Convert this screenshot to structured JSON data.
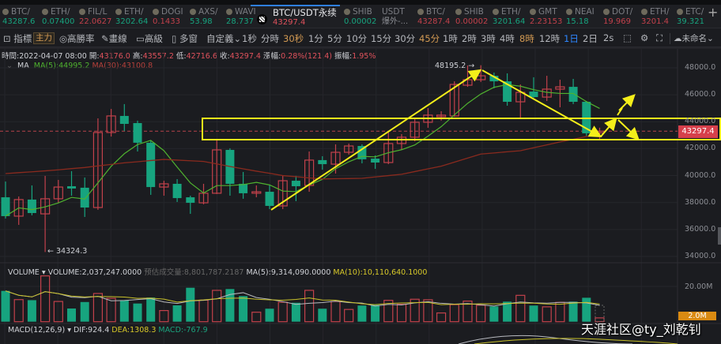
{
  "tabs": [
    {
      "name": "BTC/",
      "price": "43287.6",
      "dir": "up"
    },
    {
      "name": "ETH/",
      "price": "0.07400",
      "dir": "up"
    },
    {
      "name": "FIL/L",
      "price": "22.0627",
      "dir": "down"
    },
    {
      "name": "ETH/",
      "price": "3202.64",
      "dir": "up"
    },
    {
      "name": "DOGI",
      "price": "0.1433",
      "dir": "down"
    },
    {
      "name": "AXS/",
      "price": "53.98",
      "dir": "up"
    },
    {
      "name": "WAVI",
      "price": "28.737",
      "dir": "up"
    },
    {
      "name": "BTC/USDT永续",
      "price": "43297.4",
      "dir": "down",
      "active": true
    },
    {
      "name": "SHIB",
      "price": "0.00002",
      "dir": "up"
    },
    {
      "name": "USDT",
      "price": "爆外-...",
      "dir": "none"
    },
    {
      "name": "BTC/",
      "price": "43287.4",
      "dir": "down"
    },
    {
      "name": "SHIB",
      "price": "0.00002",
      "dir": "down"
    },
    {
      "name": "ETH/",
      "price": "3201.64",
      "dir": "up"
    },
    {
      "name": "GMT",
      "price": "2.23153",
      "dir": "down"
    },
    {
      "name": "NEAI",
      "price": "15.18",
      "dir": "up"
    },
    {
      "name": "DOT/",
      "price": "19.969",
      "dir": "down"
    },
    {
      "name": "ETH/",
      "price": "3201.4",
      "dir": "down"
    },
    {
      "name": "ETC/",
      "price": "39.321",
      "dir": "up"
    }
  ],
  "add_tab": "+",
  "toolbar": {
    "indicator": "指標",
    "main_badge": "主力",
    "win_rate": "高勝率",
    "draw": "畫線",
    "advanced": "高級",
    "multi_window": "多窗",
    "custom": "自定義",
    "intervals": [
      "1秒",
      "分時",
      "30秒",
      "1分",
      "5分",
      "10分",
      "15分",
      "30分",
      "45分",
      "1時",
      "2時",
      "3時",
      "4時",
      "8時",
      "12時",
      "1日",
      "2日",
      "2s"
    ],
    "active_interval": "1日",
    "layout_name": "未命名"
  },
  "info": {
    "time_label": "時間:",
    "time": "2022-04-07 08:00",
    "open_label": "開:",
    "open": "43176.0",
    "high_label": "高:",
    "high": "43557.2",
    "low_label": "低:",
    "low": "42716.6",
    "close_label": "收:",
    "close": "43297.4",
    "change_label": "漲幅:",
    "change": "0.28%(121.4)",
    "amp_label": "振幅:",
    "amp": "1.95%"
  },
  "ma": {
    "label": "MA",
    "ma5": "MA(5):44995.2",
    "ma30": "MA(30):43100.8"
  },
  "volume_header": {
    "label": "VOLUME",
    "volume": "VOLUME:2,037,247.0000",
    "estimate": "预估成交量:8,801,787.2187",
    "ma5": "MA(5):9,314,090.0000",
    "ma10": "MA(10):10,110,640.1000"
  },
  "macd_header": {
    "label": "MACD(12,26,9)",
    "dif": "DIF:924.4",
    "dea": "DEA:1308.3",
    "macd": "MACD:-767.9"
  },
  "price_axis": [
    "48000.0",
    "46000.0",
    "44000.0",
    "42000.0",
    "40000.0",
    "38000.0",
    "36000.0",
    "34000.0"
  ],
  "volume_axis": [
    "20.00M"
  ],
  "current_price": "43297.4",
  "current_volume": "2.0M",
  "high_marker": "48195.2 →",
  "low_marker": "← 34324.3",
  "watermark": "天涯社区@ty_刘乾钊",
  "colors": {
    "up": "#c2414b",
    "down": "#17a47f",
    "ma5": "#4fb22f",
    "ma30": "#8a2a1e",
    "drawing": "#f4ee1a",
    "accent": "#2e86ff"
  },
  "chart_data": {
    "type": "candlestick",
    "interval": "1日",
    "ylim": [
      34000,
      48000
    ],
    "ohlc": [
      [
        38390,
        39560,
        36810,
        36990
      ],
      [
        36990,
        38450,
        36340,
        38220
      ],
      [
        38220,
        39270,
        37050,
        37220
      ],
      [
        37160,
        39980,
        34324.3,
        38280
      ],
      [
        38280,
        39680,
        37980,
        39150
      ],
      [
        39210,
        40330,
        38510,
        39040
      ],
      [
        39100,
        39860,
        36930,
        37630
      ],
      [
        37630,
        44250,
        37460,
        43200
      ],
      [
        43200,
        44950,
        42900,
        44430
      ],
      [
        44430,
        45310,
        43310,
        43840
      ],
      [
        43900,
        44080,
        41790,
        42440
      ],
      [
        42440,
        42610,
        38570,
        39150
      ],
      [
        39150,
        39620,
        38510,
        39390
      ],
      [
        39390,
        39740,
        38040,
        38330
      ],
      [
        38390,
        38510,
        37160,
        37980
      ],
      [
        37980,
        39390,
        37870,
        38690
      ],
      [
        38690,
        42610,
        38630,
        41910
      ],
      [
        41910,
        42030,
        38510,
        39390
      ],
      [
        39390,
        40270,
        38280,
        38690
      ],
      [
        38690,
        39270,
        38390,
        38800
      ],
      [
        38800,
        39330,
        37510,
        37750
      ],
      [
        37750,
        39980,
        37510,
        39620
      ],
      [
        39620,
        39980,
        38100,
        39210
      ],
      [
        39270,
        41790,
        38800,
        41150
      ],
      [
        41150,
        41440,
        40440,
        40850
      ],
      [
        40850,
        42320,
        40150,
        41730
      ],
      [
        41730,
        42380,
        41560,
        42200
      ],
      [
        42200,
        42320,
        40910,
        41210
      ],
      [
        41260,
        41500,
        40500,
        40970
      ],
      [
        40970,
        43260,
        40850,
        42380
      ],
      [
        42380,
        43080,
        41910,
        42850
      ],
      [
        42850,
        44250,
        42550,
        43960
      ],
      [
        43960,
        45010,
        43550,
        44490
      ],
      [
        44370,
        44780,
        44080,
        44490
      ],
      [
        44430,
        47000,
        44370,
        46770
      ],
      [
        46710,
        48180,
        46590,
        47120
      ],
      [
        47120,
        48195.2,
        46950,
        47410
      ],
      [
        47410,
        47650,
        46480,
        47000
      ],
      [
        47000,
        47590,
        45190,
        45480
      ],
      [
        45480,
        46770,
        44310,
        46180
      ],
      [
        46240,
        47300,
        45770,
        45830
      ],
      [
        45830,
        47410,
        45540,
        46420
      ],
      [
        46420,
        47120,
        45070,
        46590
      ],
      [
        46590,
        47180,
        45310,
        45480
      ],
      [
        45480,
        45540,
        42960,
        43140
      ],
      [
        43176.0,
        43557.2,
        42716.6,
        43297.4
      ]
    ],
    "ma30": [
      40150,
      40220,
      40280,
      40350,
      40430,
      40520,
      40600,
      40720,
      40830,
      40950,
      41030,
      41120,
      41200,
      41150,
      41100,
      41050,
      40870,
      40680,
      40500,
      40330,
      40170,
      40000,
      39920,
      39830,
      39750,
      39770,
      39780,
      39800,
      39900,
      40000,
      40100,
      40300,
      40500,
      40700,
      41000,
      41300,
      41600,
      41680,
      41770,
      41850,
      42070,
      42280,
      42500,
      42700,
      42900,
      43100.8
    ],
    "volume_m": [
      16.6,
      11.9,
      11.6,
      24.7,
      10.9,
      7.1,
      10.6,
      15.2,
      12.6,
      11.6,
      9.8,
      13.0,
      6.0,
      8.8,
      18.3,
      11.6,
      16.9,
      17.6,
      13.8,
      5.1,
      7.0,
      10.5,
      10.2,
      16.9,
      7.0,
      10.9,
      6.6,
      8.7,
      9.0,
      11.5,
      9.4,
      12.1,
      11.8,
      4.7,
      9.2,
      11.1,
      8.9,
      8.2,
      10.8,
      14.2,
      8.7,
      8.0,
      10.4,
      10.8,
      12.9,
      2.04
    ],
    "volume_estimate_m": 8.8
  }
}
